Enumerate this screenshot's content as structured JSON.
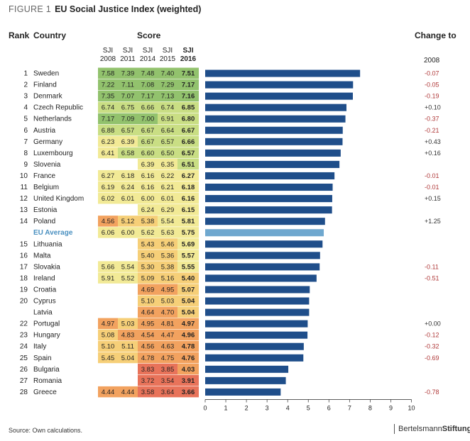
{
  "figure": {
    "label": "FIGURE 1",
    "title": "EU Social Justice Index (weighted)"
  },
  "headers": {
    "rank": "Rank",
    "country": "Country",
    "score": "Score",
    "change": "Change to",
    "change_year": "2008",
    "years": [
      {
        "top": "SJI",
        "bottom": "2008"
      },
      {
        "top": "SJI",
        "bottom": "2011"
      },
      {
        "top": "SJI",
        "bottom": "2014"
      },
      {
        "top": "SJI",
        "bottom": "2015"
      },
      {
        "top": "SJI",
        "bottom": "2016"
      }
    ]
  },
  "footer": {
    "source": "Source: Own calculations.",
    "brand_regular": "Bertelsmann",
    "brand_bold": "Stiftung"
  },
  "colors": {
    "bar": "#1f4e8a",
    "avg_bar": "#6fa8cf",
    "avg_text": "#4a90c0",
    "negative": "#b03a3a",
    "positive": "#333333",
    "cell_scale": [
      "#e8735a",
      "#f2a25f",
      "#f6cf78",
      "#f2ea96",
      "#c9de84",
      "#92c26d"
    ]
  },
  "chart_data": {
    "type": "bar",
    "orientation": "horizontal",
    "xlim": [
      0,
      10
    ],
    "x_ticks": [
      "0",
      "1",
      "2",
      "3",
      "4",
      "5",
      "6",
      "7",
      "8",
      "9",
      "10"
    ],
    "rows": [
      {
        "rank": "1",
        "country": "Sweden",
        "s2008": "7.58",
        "s2011": "7.39",
        "s2014": "7.48",
        "s2015": "7.40",
        "s2016": "7.51",
        "value": 7.51,
        "change": "-0.07"
      },
      {
        "rank": "2",
        "country": "Finland",
        "s2008": "7.22",
        "s2011": "7.11",
        "s2014": "7.08",
        "s2015": "7.29",
        "s2016": "7.17",
        "value": 7.17,
        "change": "-0.05"
      },
      {
        "rank": "3",
        "country": "Denmark",
        "s2008": "7.35",
        "s2011": "7.07",
        "s2014": "7.17",
        "s2015": "7.13",
        "s2016": "7.16",
        "value": 7.16,
        "change": "-0.19"
      },
      {
        "rank": "4",
        "country": "Czech Republic",
        "s2008": "6.74",
        "s2011": "6.75",
        "s2014": "6.66",
        "s2015": "6.74",
        "s2016": "6.85",
        "value": 6.85,
        "change": "+0.10"
      },
      {
        "rank": "5",
        "country": "Netherlands",
        "s2008": "7.17",
        "s2011": "7.09",
        "s2014": "7.00",
        "s2015": "6.91",
        "s2016": "6.80",
        "value": 6.8,
        "change": "-0.37"
      },
      {
        "rank": "6",
        "country": "Austria",
        "s2008": "6.88",
        "s2011": "6.57",
        "s2014": "6.67",
        "s2015": "6.64",
        "s2016": "6.67",
        "value": 6.67,
        "change": "-0.21"
      },
      {
        "rank": "7",
        "country": "Germany",
        "s2008": "6.23",
        "s2011": "6.39",
        "s2014": "6.67",
        "s2015": "6.57",
        "s2016": "6.66",
        "value": 6.66,
        "change": "+0.43"
      },
      {
        "rank": "8",
        "country": "Luxembourg",
        "s2008": "6.41",
        "s2011": "6.58",
        "s2014": "6.60",
        "s2015": "6.50",
        "s2016": "6.57",
        "value": 6.57,
        "change": "+0.16"
      },
      {
        "rank": "9",
        "country": "Slovenia",
        "s2008": "",
        "s2011": "",
        "s2014": "6.39",
        "s2015": "6.35",
        "s2016": "6.51",
        "value": 6.51,
        "change": ""
      },
      {
        "rank": "10",
        "country": "France",
        "s2008": "6.27",
        "s2011": "6.18",
        "s2014": "6.16",
        "s2015": "6.22",
        "s2016": "6.27",
        "value": 6.27,
        "change": "-0.01"
      },
      {
        "rank": "11",
        "country": "Belgium",
        "s2008": "6.19",
        "s2011": "6.24",
        "s2014": "6.16",
        "s2015": "6.21",
        "s2016": "6.18",
        "value": 6.18,
        "change": "-0.01"
      },
      {
        "rank": "12",
        "country": "United Kingdom",
        "s2008": "6.02",
        "s2011": "6.01",
        "s2014": "6.00",
        "s2015": "6.01",
        "s2016": "6.16",
        "value": 6.16,
        "change": "+0.15"
      },
      {
        "rank": "13",
        "country": "Estonia",
        "s2008": "",
        "s2011": "",
        "s2014": "6.24",
        "s2015": "6.29",
        "s2016": "6.15",
        "value": 6.15,
        "change": ""
      },
      {
        "rank": "14",
        "country": "Poland",
        "s2008": "4.56",
        "s2011": "5.12",
        "s2014": "5.38",
        "s2015": "5.54",
        "s2016": "5.81",
        "value": 5.81,
        "change": "+1.25"
      },
      {
        "rank": "",
        "country": "EU Average",
        "s2008": "6.06",
        "s2011": "6.00",
        "s2014": "5.62",
        "s2015": "5.63",
        "s2016": "5.75",
        "value": 5.75,
        "change": "",
        "average": true
      },
      {
        "rank": "15",
        "country": "Lithuania",
        "s2008": "",
        "s2011": "",
        "s2014": "5.43",
        "s2015": "5.46",
        "s2016": "5.69",
        "value": 5.69,
        "change": ""
      },
      {
        "rank": "16",
        "country": "Malta",
        "s2008": "",
        "s2011": "",
        "s2014": "5.40",
        "s2015": "5.36",
        "s2016": "5.57",
        "value": 5.57,
        "change": ""
      },
      {
        "rank": "17",
        "country": "Slovakia",
        "s2008": "5.66",
        "s2011": "5.54",
        "s2014": "5.30",
        "s2015": "5.38",
        "s2016": "5.55",
        "value": 5.55,
        "change": "-0.11"
      },
      {
        "rank": "18",
        "country": "Ireland",
        "s2008": "5.91",
        "s2011": "5.52",
        "s2014": "5.09",
        "s2015": "5.16",
        "s2016": "5.40",
        "value": 5.4,
        "change": "-0.51"
      },
      {
        "rank": "19",
        "country": "Croatia",
        "s2008": "",
        "s2011": "",
        "s2014": "4.69",
        "s2015": "4.95",
        "s2016": "5.07",
        "value": 5.07,
        "change": ""
      },
      {
        "rank": "20",
        "country": "Cyprus",
        "s2008": "",
        "s2011": "",
        "s2014": "5.10",
        "s2015": "5.03",
        "s2016": "5.04",
        "value": 5.04,
        "change": ""
      },
      {
        "rank": "",
        "country": "Latvia",
        "s2008": "",
        "s2011": "",
        "s2014": "4.64",
        "s2015": "4.70",
        "s2016": "5.04",
        "value": 5.04,
        "change": ""
      },
      {
        "rank": "22",
        "country": "Portugal",
        "s2008": "4.97",
        "s2011": "5.03",
        "s2014": "4.95",
        "s2015": "4.81",
        "s2016": "4.97",
        "value": 4.97,
        "change": "+0.00"
      },
      {
        "rank": "23",
        "country": "Hungary",
        "s2008": "5.08",
        "s2011": "4.83",
        "s2014": "4.54",
        "s2015": "4.47",
        "s2016": "4.96",
        "value": 4.96,
        "change": "-0.12"
      },
      {
        "rank": "24",
        "country": "Italy",
        "s2008": "5.10",
        "s2011": "5.11",
        "s2014": "4.56",
        "s2015": "4.63",
        "s2016": "4.78",
        "value": 4.78,
        "change": "-0.32"
      },
      {
        "rank": "25",
        "country": "Spain",
        "s2008": "5.45",
        "s2011": "5.04",
        "s2014": "4.78",
        "s2015": "4.75",
        "s2016": "4.76",
        "value": 4.76,
        "change": "-0.69"
      },
      {
        "rank": "26",
        "country": "Bulgaria",
        "s2008": "",
        "s2011": "",
        "s2014": "3.83",
        "s2015": "3.85",
        "s2016": "4.03",
        "value": 4.03,
        "change": ""
      },
      {
        "rank": "27",
        "country": "Romania",
        "s2008": "",
        "s2011": "",
        "s2014": "3.72",
        "s2015": "3.54",
        "s2016": "3.91",
        "value": 3.91,
        "change": ""
      },
      {
        "rank": "28",
        "country": "Greece",
        "s2008": "4.44",
        "s2011": "4.44",
        "s2014": "3.58",
        "s2015": "3.64",
        "s2016": "3.66",
        "value": 3.66,
        "change": "-0.78"
      }
    ]
  }
}
